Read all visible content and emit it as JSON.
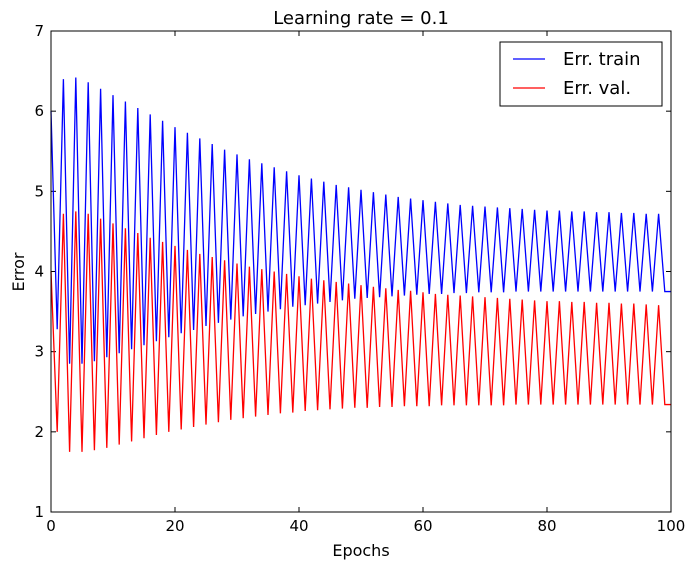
{
  "chart_data": {
    "type": "line",
    "title": "Learning rate = 0.1",
    "xlabel": "Epochs",
    "ylabel": "Error",
    "xlim": [
      0,
      100
    ],
    "ylim": [
      1,
      7
    ],
    "x_ticks": [
      "0",
      "20",
      "40",
      "60",
      "80",
      "100"
    ],
    "y_ticks": [
      "1",
      "2",
      "3",
      "4",
      "5",
      "6",
      "7"
    ],
    "grid": false,
    "legend_position": "top-right",
    "series": [
      {
        "name": "Err. train",
        "color": "#0000ff",
        "x": [
          0,
          1,
          2,
          3,
          4,
          5,
          6,
          7,
          8,
          9,
          10,
          11,
          12,
          13,
          14,
          15,
          16,
          17,
          18,
          19,
          20,
          21,
          22,
          23,
          24,
          25,
          26,
          27,
          28,
          29,
          30,
          31,
          32,
          33,
          34,
          35,
          36,
          37,
          38,
          39,
          40,
          41,
          42,
          43,
          44,
          45,
          46,
          47,
          48,
          49,
          50,
          51,
          52,
          53,
          54,
          55,
          56,
          57,
          58,
          59,
          60,
          61,
          62,
          63,
          64,
          65,
          66,
          67,
          68,
          69,
          70,
          71,
          72,
          73,
          74,
          75,
          76,
          77,
          78,
          79,
          80,
          81,
          82,
          83,
          84,
          85,
          86,
          87,
          88,
          89,
          90,
          91,
          92,
          93,
          94,
          95,
          96,
          97,
          98,
          99,
          100
        ],
        "values": [
          6.0,
          3.28,
          6.4,
          2.85,
          6.42,
          2.85,
          6.36,
          2.88,
          6.28,
          2.93,
          6.2,
          2.98,
          6.12,
          3.03,
          6.04,
          3.08,
          5.96,
          3.13,
          5.88,
          3.18,
          5.8,
          3.23,
          5.73,
          3.27,
          5.66,
          3.32,
          5.59,
          3.36,
          5.52,
          3.4,
          5.46,
          3.44,
          5.4,
          3.47,
          5.35,
          3.5,
          5.3,
          3.53,
          5.25,
          3.56,
          5.2,
          3.58,
          5.16,
          3.6,
          5.12,
          3.62,
          5.08,
          3.64,
          5.05,
          3.66,
          5.02,
          3.67,
          4.99,
          3.68,
          4.96,
          3.69,
          4.93,
          3.7,
          4.91,
          3.71,
          4.89,
          3.72,
          4.87,
          3.72,
          4.85,
          3.73,
          4.83,
          3.73,
          4.82,
          3.74,
          4.81,
          3.74,
          4.8,
          3.74,
          4.79,
          3.75,
          4.78,
          3.75,
          4.77,
          3.75,
          4.76,
          3.75,
          4.76,
          3.75,
          4.75,
          3.75,
          4.75,
          3.75,
          4.74,
          3.75,
          4.74,
          3.75,
          4.73,
          3.75,
          4.73,
          3.75,
          4.72,
          3.75,
          4.72,
          3.75,
          3.75
        ]
      },
      {
        "name": "Err. val.",
        "color": "#ff0000",
        "x": [
          0,
          1,
          2,
          3,
          4,
          5,
          6,
          7,
          8,
          9,
          10,
          11,
          12,
          13,
          14,
          15,
          16,
          17,
          18,
          19,
          20,
          21,
          22,
          23,
          24,
          25,
          26,
          27,
          28,
          29,
          30,
          31,
          32,
          33,
          34,
          35,
          36,
          37,
          38,
          39,
          40,
          41,
          42,
          43,
          44,
          45,
          46,
          47,
          48,
          49,
          50,
          51,
          52,
          53,
          54,
          55,
          56,
          57,
          58,
          59,
          60,
          61,
          62,
          63,
          64,
          65,
          66,
          67,
          68,
          69,
          70,
          71,
          72,
          73,
          74,
          75,
          76,
          77,
          78,
          79,
          80,
          81,
          82,
          83,
          84,
          85,
          86,
          87,
          88,
          89,
          90,
          91,
          92,
          93,
          94,
          95,
          96,
          97,
          98,
          99,
          100
        ],
        "values": [
          4.0,
          2.0,
          4.72,
          1.75,
          4.75,
          1.75,
          4.72,
          1.77,
          4.66,
          1.8,
          4.6,
          1.84,
          4.54,
          1.88,
          4.48,
          1.92,
          4.42,
          1.96,
          4.37,
          2.0,
          4.32,
          2.03,
          4.27,
          2.06,
          4.22,
          2.09,
          4.18,
          2.12,
          4.14,
          2.15,
          4.1,
          2.17,
          4.06,
          2.19,
          4.03,
          2.21,
          4.0,
          2.23,
          3.97,
          2.24,
          3.94,
          2.26,
          3.91,
          2.27,
          3.89,
          2.28,
          3.87,
          2.29,
          3.85,
          2.3,
          3.83,
          2.3,
          3.81,
          2.31,
          3.79,
          2.31,
          3.77,
          2.32,
          3.76,
          2.32,
          3.74,
          2.32,
          3.72,
          2.33,
          3.71,
          2.33,
          3.7,
          2.33,
          3.69,
          2.33,
          3.68,
          2.33,
          3.67,
          2.33,
          3.66,
          2.34,
          3.65,
          2.34,
          3.64,
          2.34,
          3.63,
          2.34,
          3.63,
          2.34,
          3.62,
          2.34,
          3.62,
          2.34,
          3.61,
          2.34,
          3.61,
          2.34,
          3.6,
          2.34,
          3.6,
          2.34,
          3.59,
          2.34,
          3.58,
          2.34,
          2.34
        ]
      }
    ]
  }
}
